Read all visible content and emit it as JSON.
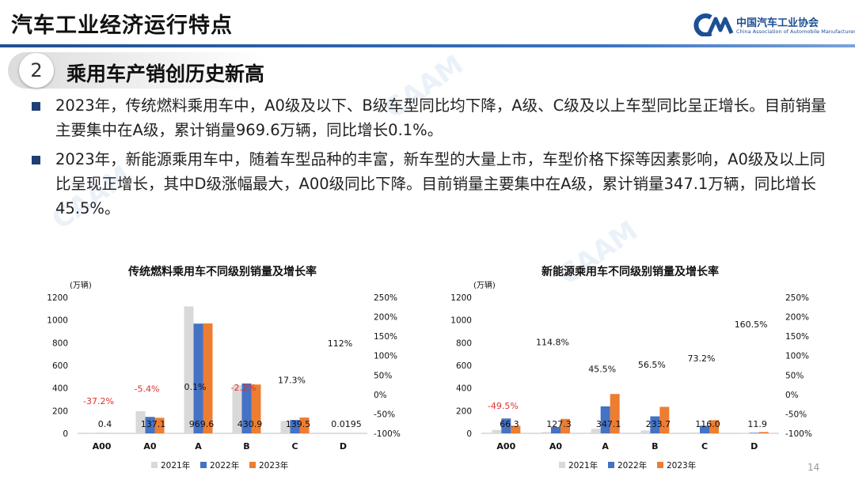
{
  "header": {
    "title": "汽车工业经济运行特点",
    "logo_cn": "中国汽车工业协会",
    "logo_en": "China Association of Automobile Manufacturers"
  },
  "section": {
    "number": "2",
    "title": "乘用车产销创历史新高"
  },
  "bullets": [
    "2023年，传统燃料乘用车中，A0级及以下、B级车型同比均下降，A级、C级及以上车型同比呈正增长。目前销量主要集中在A级，累计销量969.6万辆，同比增长0.1%。",
    "2023年，新能源乘用车中，随着车型品种的丰富，新车型的大量上市，车型价格下探等因素影响，A0级及以上同比呈现正增长，其中D级涨幅最大，A00级同比下降。目前销量主要集中在A级，累计销量347.1万辆，同比增长45.5%。"
  ],
  "page_number": "14",
  "colors": {
    "s2021": "#d9d9d9",
    "s2022": "#4472c4",
    "s2023": "#ed7d31",
    "negative": "#e0302c"
  },
  "chart_data": [
    {
      "type": "bar",
      "title": "传统燃料乘用车不同级别销量及增长率",
      "unit": "(万辆)",
      "categories": [
        "A00",
        "A0",
        "A",
        "B",
        "C",
        "D"
      ],
      "series": [
        {
          "name": "2021年",
          "values": [
            0.6,
            195,
            1120,
            425,
            110,
            0.03
          ]
        },
        {
          "name": "2022年",
          "values": [
            0.64,
            145,
            968,
            440,
            118,
            0.009
          ]
        },
        {
          "name": "2023年",
          "values": [
            0.4,
            137.1,
            969.6,
            430.9,
            139.5,
            0.0195
          ]
        }
      ],
      "value_labels": [
        "0.4",
        "137.1",
        "969.6",
        "430.9",
        "139.5",
        "0.0195"
      ],
      "growth_labels": [
        "-37.2%",
        "-5.4%",
        "0.1%",
        "-2.2%",
        "17.3%",
        "112%"
      ],
      "growth_values": [
        -37.2,
        -5.4,
        0.1,
        -2.2,
        17.3,
        112
      ],
      "ylim": [
        0,
        1200
      ],
      "yticks": [
        "0",
        "200",
        "400",
        "600",
        "800",
        "1000",
        "1200"
      ],
      "y2lim": [
        -100,
        250
      ],
      "y2ticks": [
        "-100%",
        "-50%",
        "0%",
        "50%",
        "100%",
        "150%",
        "200%",
        "250%"
      ],
      "legend": "bottom"
    },
    {
      "type": "bar",
      "title": "新能源乘用车不同级别销量及增长率",
      "unit": "(万辆)",
      "categories": [
        "A00",
        "A0",
        "A",
        "B",
        "C",
        "D"
      ],
      "series": [
        {
          "name": "2021年",
          "values": [
            30,
            12,
            40,
            25,
            8,
            2
          ]
        },
        {
          "name": "2022年",
          "values": [
            131,
            56,
            238,
            150,
            67,
            4.6
          ]
        },
        {
          "name": "2023年",
          "values": [
            66.3,
            127.3,
            347.1,
            233.7,
            116.0,
            11.9
          ]
        }
      ],
      "value_labels": [
        "66.3",
        "127.3",
        "347.1",
        "233.7",
        "116.0",
        "11.9"
      ],
      "growth_labels": [
        "-49.5%",
        "114.8%",
        "45.5%",
        "56.5%",
        "73.2%",
        "160.5%"
      ],
      "growth_values": [
        -49.5,
        114.8,
        45.5,
        56.5,
        73.2,
        160.5
      ],
      "ylim": [
        0,
        1200
      ],
      "yticks": [
        "0",
        "200",
        "400",
        "600",
        "800",
        "1000",
        "1200"
      ],
      "y2lim": [
        -100,
        250
      ],
      "y2ticks": [
        "-100%",
        "-50%",
        "0%",
        "50%",
        "100%",
        "150%",
        "200%",
        "250%"
      ],
      "legend": "bottom"
    }
  ]
}
